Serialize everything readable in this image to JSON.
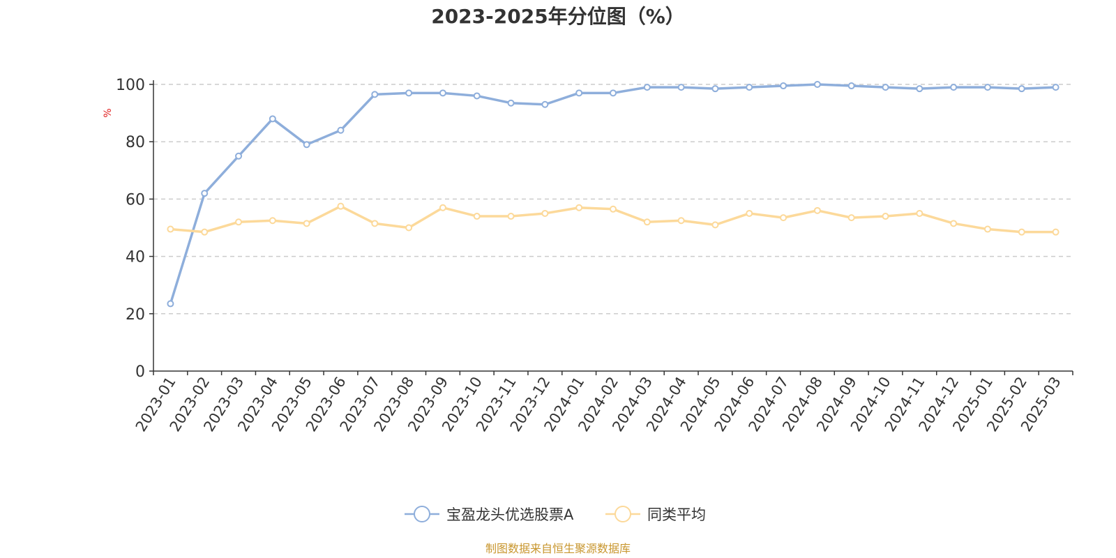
{
  "chart_data": {
    "type": "line",
    "title": "2023-2025年分位图（%）",
    "ylabel": "%",
    "xlabel": "",
    "ylim": [
      0,
      100
    ],
    "yticks": [
      0,
      20,
      40,
      60,
      80,
      100
    ],
    "grid": true,
    "legend_position": "bottom-center",
    "categories": [
      "2023-01",
      "2023-02",
      "2023-03",
      "2023-04",
      "2023-05",
      "2023-06",
      "2023-07",
      "2023-08",
      "2023-09",
      "2023-10",
      "2023-11",
      "2023-12",
      "2024-01",
      "2024-02",
      "2024-03",
      "2024-04",
      "2024-05",
      "2024-06",
      "2024-07",
      "2024-08",
      "2024-09",
      "2024-10",
      "2024-11",
      "2024-12",
      "2025-01",
      "2025-02",
      "2025-03"
    ],
    "series": [
      {
        "name": "宝盈龙头优选股票A",
        "color": "#8eaedb",
        "values": [
          23.5,
          62,
          75,
          88,
          79,
          84,
          96.5,
          97,
          97,
          96,
          93.5,
          93,
          97,
          97,
          99,
          99,
          98.5,
          99,
          99.5,
          100,
          99.5,
          99,
          98.5,
          99,
          99,
          98.5,
          99
        ]
      },
      {
        "name": "同类平均",
        "color": "#fcd99a",
        "values": [
          49.5,
          48.5,
          52,
          52.5,
          51.5,
          57.5,
          51.5,
          50,
          57,
          54,
          54,
          55,
          57,
          56.5,
          52,
          52.5,
          51,
          55,
          53.5,
          56,
          53.5,
          54,
          55,
          51.5,
          49.5,
          48.5,
          48.5
        ]
      }
    ]
  },
  "source_text": "制图数据来自恒生聚源数据库"
}
